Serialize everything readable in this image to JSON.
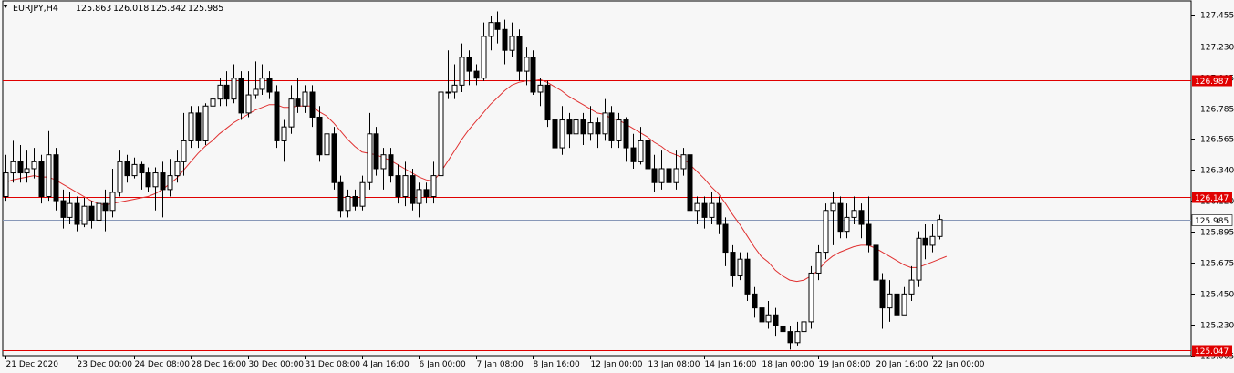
{
  "header": {
    "symbol": "EURJPY,H4",
    "open": "125.863",
    "high": "126.018",
    "low": "125.842",
    "close": "125.985"
  },
  "colors": {
    "background": "#f7f7f7",
    "candle": "#000000",
    "ma_line": "#e03030",
    "level_line": "#e00000",
    "current_line": "#8898b8",
    "current_label_bg": "#ffffff",
    "level_label_bg": "#e00000"
  },
  "chart_data": {
    "type": "candlestick",
    "title": "",
    "xlabel": "",
    "ylabel": "",
    "ylim": [
      125.007,
      127.555
    ],
    "y_ticks": [
      "127.455",
      "127.230",
      "127.005",
      "126.785",
      "126.565",
      "126.340",
      "126.120",
      "125.895",
      "125.675",
      "125.450",
      "125.230",
      "125.005"
    ],
    "x_ticks": [
      {
        "label": "21 Dec 2020",
        "index": 0
      },
      {
        "label": "23 Dec 00:00",
        "index": 10
      },
      {
        "label": "24 Dec 08:00",
        "index": 18
      },
      {
        "label": "28 Dec 16:00",
        "index": 26
      },
      {
        "label": "30 Dec 00:00",
        "index": 34
      },
      {
        "label": "31 Dec 08:00",
        "index": 42
      },
      {
        "label": "4 Jan 16:00",
        "index": 50
      },
      {
        "label": "6 Jan 00:00",
        "index": 58
      },
      {
        "label": "7 Jan 08:00",
        "index": 66
      },
      {
        "label": "8 Jan 16:00",
        "index": 74
      },
      {
        "label": "12 Jan 00:00",
        "index": 82
      },
      {
        "label": "13 Jan 08:00",
        "index": 90
      },
      {
        "label": "14 Jan 16:00",
        "index": 98
      },
      {
        "label": "18 Jan 00:00",
        "index": 106
      },
      {
        "label": "19 Jan 08:00",
        "index": 114
      },
      {
        "label": "20 Jan 16:00",
        "index": 122
      },
      {
        "label": "22 Jan 00:00",
        "index": 130
      }
    ],
    "levels": [
      {
        "label": "126.987",
        "value": 126.987
      },
      {
        "label": "126.147",
        "value": 126.147
      },
      {
        "label": "125.047",
        "value": 125.047
      }
    ],
    "current": {
      "label": "125.985",
      "value": 125.985
    },
    "candles": [
      [
        126.15,
        126.32,
        126.45,
        126.12
      ],
      [
        126.32,
        126.4,
        126.55,
        126.25
      ],
      [
        126.4,
        126.32,
        126.52,
        126.25
      ],
      [
        126.32,
        126.35,
        126.48,
        126.25
      ],
      [
        126.35,
        126.4,
        126.5,
        126.28
      ],
      [
        126.4,
        126.15,
        126.45,
        126.1
      ],
      [
        126.15,
        126.45,
        126.62,
        126.12
      ],
      [
        126.45,
        126.12,
        126.5,
        126.05
      ],
      [
        126.12,
        126.0,
        126.2,
        125.92
      ],
      [
        126.0,
        126.1,
        126.18,
        125.95
      ],
      [
        126.1,
        125.95,
        126.15,
        125.9
      ],
      [
        125.95,
        126.08,
        126.14,
        125.93
      ],
      [
        126.08,
        125.98,
        126.12,
        125.92
      ],
      [
        125.98,
        126.1,
        126.18,
        125.95
      ],
      [
        126.1,
        126.05,
        126.2,
        125.9
      ],
      [
        126.05,
        126.18,
        126.35,
        126.0
      ],
      [
        126.18,
        126.4,
        126.48,
        126.15
      ],
      [
        126.4,
        126.3,
        126.45,
        126.25
      ],
      [
        126.3,
        126.38,
        126.43,
        126.28
      ],
      [
        126.38,
        126.32,
        126.4,
        126.2
      ],
      [
        126.32,
        126.22,
        126.36,
        126.18
      ],
      [
        126.22,
        126.32,
        126.36,
        126.05
      ],
      [
        126.32,
        126.2,
        126.4,
        126.0
      ],
      [
        126.2,
        126.3,
        126.42,
        126.15
      ],
      [
        126.3,
        126.4,
        126.48,
        126.25
      ],
      [
        126.4,
        126.55,
        126.75,
        126.3
      ],
      [
        126.55,
        126.75,
        126.8,
        126.5
      ],
      [
        126.75,
        126.55,
        126.8,
        126.5
      ],
      [
        126.55,
        126.8,
        126.82,
        126.52
      ],
      [
        126.8,
        126.85,
        126.92,
        126.75
      ],
      [
        126.85,
        126.95,
        127.0,
        126.8
      ],
      [
        126.95,
        126.85,
        127.05,
        126.8
      ],
      [
        126.85,
        127.0,
        127.1,
        126.82
      ],
      [
        127.0,
        126.75,
        127.05,
        126.7
      ],
      [
        126.75,
        126.88,
        127.05,
        126.72
      ],
      [
        126.88,
        126.92,
        127.12,
        126.85
      ],
      [
        126.92,
        127.0,
        127.1,
        126.88
      ],
      [
        127.0,
        126.9,
        127.05,
        126.85
      ],
      [
        126.9,
        126.55,
        126.95,
        126.5
      ],
      [
        126.55,
        126.65,
        126.7,
        126.4
      ],
      [
        126.65,
        126.85,
        126.95,
        126.6
      ],
      [
        126.85,
        126.8,
        127.0,
        126.75
      ],
      [
        126.8,
        126.9,
        126.95,
        126.75
      ],
      [
        126.9,
        126.72,
        126.95,
        126.65
      ],
      [
        126.72,
        126.45,
        126.8,
        126.4
      ],
      [
        126.45,
        126.6,
        126.65,
        126.35
      ],
      [
        126.6,
        126.25,
        126.65,
        126.2
      ],
      [
        126.25,
        126.05,
        126.3,
        126.0
      ],
      [
        126.05,
        126.15,
        126.2,
        126.0
      ],
      [
        126.15,
        126.08,
        126.2,
        126.05
      ],
      [
        126.08,
        126.25,
        126.3,
        126.05
      ],
      [
        126.25,
        126.6,
        126.75,
        126.2
      ],
      [
        126.6,
        126.35,
        126.65,
        126.3
      ],
      [
        126.35,
        126.45,
        126.5,
        126.2
      ],
      [
        126.45,
        126.3,
        126.5,
        126.25
      ],
      [
        126.3,
        126.15,
        126.38,
        126.1
      ],
      [
        126.15,
        126.3,
        126.4,
        126.08
      ],
      [
        126.3,
        126.1,
        126.35,
        126.05
      ],
      [
        126.1,
        126.2,
        126.25,
        126.0
      ],
      [
        126.2,
        126.15,
        126.25,
        126.1
      ],
      [
        126.15,
        126.3,
        126.4,
        126.1
      ],
      [
        126.3,
        126.9,
        126.95,
        126.25
      ],
      [
        126.9,
        126.9,
        127.2,
        126.85
      ],
      [
        126.9,
        126.95,
        127.1,
        126.85
      ],
      [
        126.95,
        127.15,
        127.25,
        126.9
      ],
      [
        127.15,
        127.05,
        127.2,
        126.95
      ],
      [
        127.05,
        127.0,
        127.1,
        126.95
      ],
      [
        127.0,
        127.3,
        127.4,
        126.98
      ],
      [
        127.3,
        127.4,
        127.45,
        127.2
      ],
      [
        127.4,
        127.35,
        127.48,
        127.25
      ],
      [
        127.35,
        127.2,
        127.42,
        127.1
      ],
      [
        127.2,
        127.3,
        127.4,
        127.15
      ],
      [
        127.3,
        127.05,
        127.35,
        126.98
      ],
      [
        127.05,
        127.15,
        127.22,
        126.95
      ],
      [
        127.15,
        126.9,
        127.2,
        126.88
      ],
      [
        126.9,
        126.95,
        127.0,
        126.8
      ],
      [
        126.95,
        126.7,
        126.98,
        126.65
      ],
      [
        126.7,
        126.5,
        126.75,
        126.45
      ],
      [
        126.5,
        126.7,
        126.8,
        126.45
      ],
      [
        126.7,
        126.6,
        126.75,
        126.5
      ],
      [
        126.6,
        126.7,
        126.78,
        126.55
      ],
      [
        126.7,
        126.6,
        126.75,
        126.52
      ],
      [
        126.6,
        126.68,
        126.8,
        126.55
      ],
      [
        126.68,
        126.6,
        126.72,
        126.5
      ],
      [
        126.6,
        126.75,
        126.85,
        126.55
      ],
      [
        126.75,
        126.55,
        126.8,
        126.5
      ],
      [
        126.55,
        126.7,
        126.75,
        126.5
      ],
      [
        126.7,
        126.5,
        126.72,
        126.4
      ],
      [
        126.5,
        126.4,
        126.6,
        126.35
      ],
      [
        126.4,
        126.55,
        126.65,
        126.38
      ],
      [
        126.55,
        126.35,
        126.6,
        126.2
      ],
      [
        126.35,
        126.25,
        126.45,
        126.18
      ],
      [
        126.25,
        126.35,
        126.48,
        126.2
      ],
      [
        126.35,
        126.25,
        126.4,
        126.15
      ],
      [
        126.25,
        126.35,
        126.48,
        126.2
      ],
      [
        126.35,
        126.45,
        126.5,
        126.3
      ],
      [
        126.45,
        126.05,
        126.5,
        125.9
      ],
      [
        126.05,
        126.1,
        126.15,
        125.95
      ],
      [
        126.1,
        126.0,
        126.15,
        125.92
      ],
      [
        126.0,
        126.1,
        126.18,
        125.95
      ],
      [
        126.1,
        125.95,
        126.15,
        125.88
      ],
      [
        125.95,
        125.75,
        126.0,
        125.65
      ],
      [
        125.75,
        125.58,
        125.8,
        125.5
      ],
      [
        125.58,
        125.7,
        125.75,
        125.55
      ],
      [
        125.7,
        125.45,
        125.75,
        125.4
      ],
      [
        125.45,
        125.35,
        125.5,
        125.28
      ],
      [
        125.35,
        125.25,
        125.4,
        125.2
      ],
      [
        125.25,
        125.3,
        125.4,
        125.2
      ],
      [
        125.3,
        125.22,
        125.35,
        125.15
      ],
      [
        125.22,
        125.18,
        125.28,
        125.1
      ],
      [
        125.18,
        125.1,
        125.22,
        125.05
      ],
      [
        125.1,
        125.18,
        125.25,
        125.08
      ],
      [
        125.18,
        125.25,
        125.3,
        125.12
      ],
      [
        125.25,
        125.6,
        125.65,
        125.2
      ],
      [
        125.6,
        125.75,
        125.8,
        125.55
      ],
      [
        125.75,
        126.05,
        126.1,
        125.7
      ],
      [
        126.05,
        126.1,
        126.18,
        125.8
      ],
      [
        126.1,
        125.9,
        126.15,
        125.85
      ],
      [
        125.9,
        126.0,
        126.1,
        125.85
      ],
      [
        126.0,
        126.05,
        126.15,
        125.95
      ],
      [
        126.05,
        125.95,
        126.1,
        125.85
      ],
      [
        125.95,
        125.8,
        126.15,
        125.75
      ],
      [
        125.8,
        125.55,
        125.85,
        125.5
      ],
      [
        125.55,
        125.35,
        125.6,
        125.2
      ],
      [
        125.35,
        125.45,
        125.55,
        125.25
      ],
      [
        125.45,
        125.3,
        125.5,
        125.25
      ],
      [
        125.3,
        125.45,
        125.5,
        125.3
      ],
      [
        125.45,
        125.55,
        125.65,
        125.4
      ],
      [
        125.55,
        125.85,
        125.9,
        125.5
      ],
      [
        125.85,
        125.8,
        125.95,
        125.7
      ],
      [
        125.8,
        125.863,
        125.95,
        125.75
      ],
      [
        125.863,
        125.985,
        126.018,
        125.842
      ]
    ],
    "ma": [
      126.25,
      126.27,
      126.28,
      126.29,
      126.3,
      126.29,
      126.29,
      126.27,
      126.24,
      126.21,
      126.18,
      126.15,
      126.12,
      126.1,
      126.09,
      126.1,
      126.11,
      126.12,
      126.13,
      126.14,
      126.15,
      126.17,
      126.2,
      126.24,
      126.28,
      126.34,
      126.4,
      126.46,
      126.51,
      126.55,
      126.6,
      126.64,
      126.68,
      126.71,
      126.74,
      126.77,
      126.79,
      126.81,
      126.81,
      126.79,
      126.79,
      126.8,
      126.8,
      126.8,
      126.76,
      126.73,
      126.68,
      126.62,
      126.56,
      126.51,
      126.47,
      126.46,
      126.45,
      126.43,
      126.41,
      126.38,
      126.35,
      126.32,
      126.29,
      126.27,
      126.26,
      126.32,
      126.4,
      126.48,
      126.56,
      126.63,
      126.69,
      126.75,
      126.81,
      126.86,
      126.91,
      126.95,
      126.97,
      126.98,
      126.98,
      126.99,
      126.97,
      126.94,
      126.91,
      126.87,
      126.84,
      126.81,
      126.78,
      126.75,
      126.74,
      126.71,
      126.7,
      126.67,
      126.64,
      126.61,
      126.58,
      126.54,
      126.51,
      126.47,
      126.45,
      126.43,
      126.38,
      126.33,
      126.28,
      126.22,
      126.17,
      126.1,
      126.02,
      125.95,
      125.87,
      125.79,
      125.72,
      125.68,
      125.62,
      125.58,
      125.55,
      125.54,
      125.55,
      125.58,
      125.62,
      125.68,
      125.72,
      125.75,
      125.77,
      125.79,
      125.8,
      125.8,
      125.78,
      125.75,
      125.72,
      125.69,
      125.66,
      125.64,
      125.64,
      125.66,
      125.68,
      125.7,
      125.72
    ]
  }
}
